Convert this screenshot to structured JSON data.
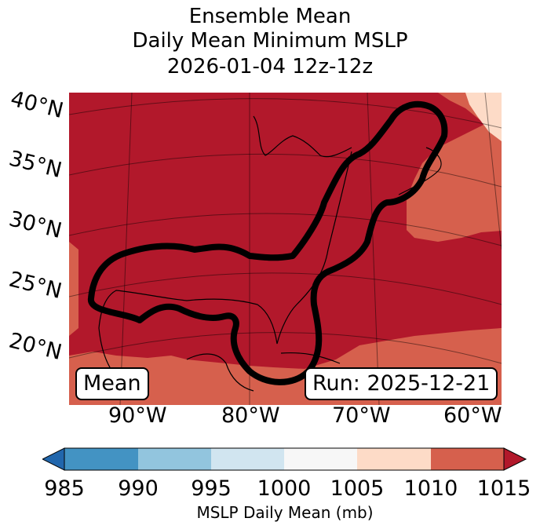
{
  "title": {
    "line1": "Ensemble Mean",
    "line2": "Daily Mean Minimum MSLP",
    "line3": "2026-01-04 12z-12z"
  },
  "map": {
    "lat_labels": [
      "40°N",
      "35°N",
      "30°N",
      "25°N",
      "20°N"
    ],
    "lon_labels": [
      "90°W",
      "80°W",
      "70°W",
      "60°W"
    ],
    "mean_label": "Mean",
    "run_label": "Run: 2025-12-21",
    "colors": {
      "dark_red": "#b2182b",
      "med_red": "#d6604d",
      "light_peach": "#fddbc7",
      "outline": "#000000"
    }
  },
  "colorbar": {
    "ticks": [
      "985",
      "990",
      "995",
      "1000",
      "1005",
      "1010",
      "1015"
    ],
    "label": "MSLP Daily Mean (mb)",
    "colors": [
      "#2166ac",
      "#4393c3",
      "#92c5de",
      "#d1e5f0",
      "#f7f7f7",
      "#fddbc7",
      "#d6604d",
      "#b2182b"
    ]
  }
}
